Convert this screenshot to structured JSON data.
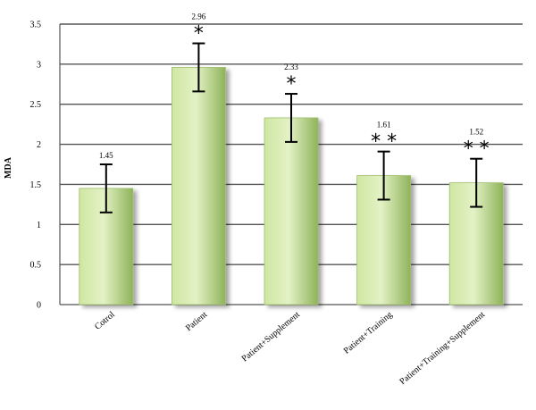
{
  "chart_data": {
    "type": "bar",
    "title": "",
    "xlabel": "",
    "ylabel": "MDA",
    "ylim": [
      0,
      3.5
    ],
    "yticks": [
      "0",
      "0.5",
      "1",
      "1.5",
      "2",
      "2.5",
      "3",
      "3.5"
    ],
    "categories": [
      "Cotrol",
      "Patient",
      "Patient+Supplement",
      "Patient+Training",
      "Patient+Training+Supplement"
    ],
    "values": [
      1.45,
      2.96,
      2.33,
      1.61,
      1.52
    ],
    "error": [
      0.3,
      0.3,
      0.3,
      0.3,
      0.3
    ],
    "data_labels": [
      "1.45",
      "2.96",
      "2.33",
      "1.61",
      "1.52"
    ],
    "significance": [
      "",
      "*",
      "*",
      "**",
      "**"
    ],
    "grid": true,
    "colors": {
      "bar_light": "#e3f2c5",
      "bar_mid": "#cfe6a2",
      "bar_dark": "#8fb35a",
      "grid": "#555555"
    }
  }
}
